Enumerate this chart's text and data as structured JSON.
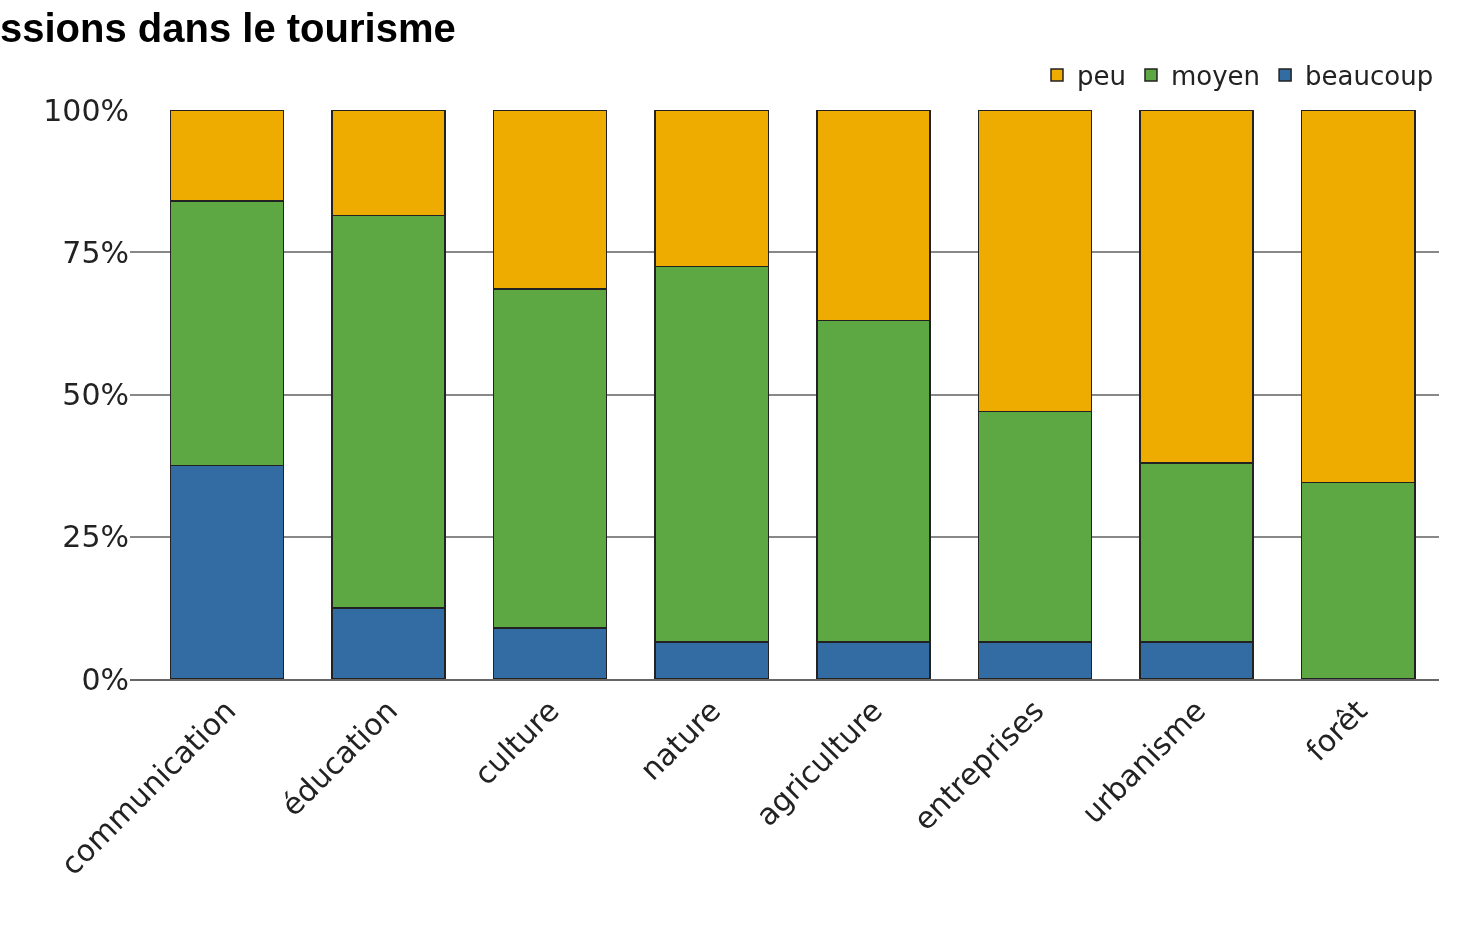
{
  "chart_data": {
    "type": "bar",
    "title": "ssions dans le tourisme",
    "stacked": true,
    "categories": [
      "communication",
      "éducation",
      "culture",
      "nature",
      "agriculture",
      "entreprises",
      "urbanisme",
      "forêt"
    ],
    "series": [
      {
        "name": "beaucoup",
        "color": "#336ca3",
        "values": [
          37.5,
          12.5,
          9,
          6.5,
          6.5,
          6.5,
          6.5,
          0
        ]
      },
      {
        "name": "moyen",
        "color": "#5ea843",
        "values": [
          46.5,
          69,
          59.5,
          66,
          56.5,
          40.5,
          31.5,
          34.5
        ]
      },
      {
        "name": "peu",
        "color": "#eeab00",
        "values": [
          16,
          18.5,
          31.5,
          27.5,
          37,
          53,
          62,
          65.5
        ]
      }
    ],
    "ylim": [
      0,
      100
    ],
    "yticks": [
      {
        "value": 0,
        "label": "0%"
      },
      {
        "value": 25,
        "label": "25%"
      },
      {
        "value": 50,
        "label": "50%"
      },
      {
        "value": 75,
        "label": "75%"
      },
      {
        "value": 100,
        "label": "100%"
      }
    ],
    "grid": "y",
    "legend": "top right"
  }
}
